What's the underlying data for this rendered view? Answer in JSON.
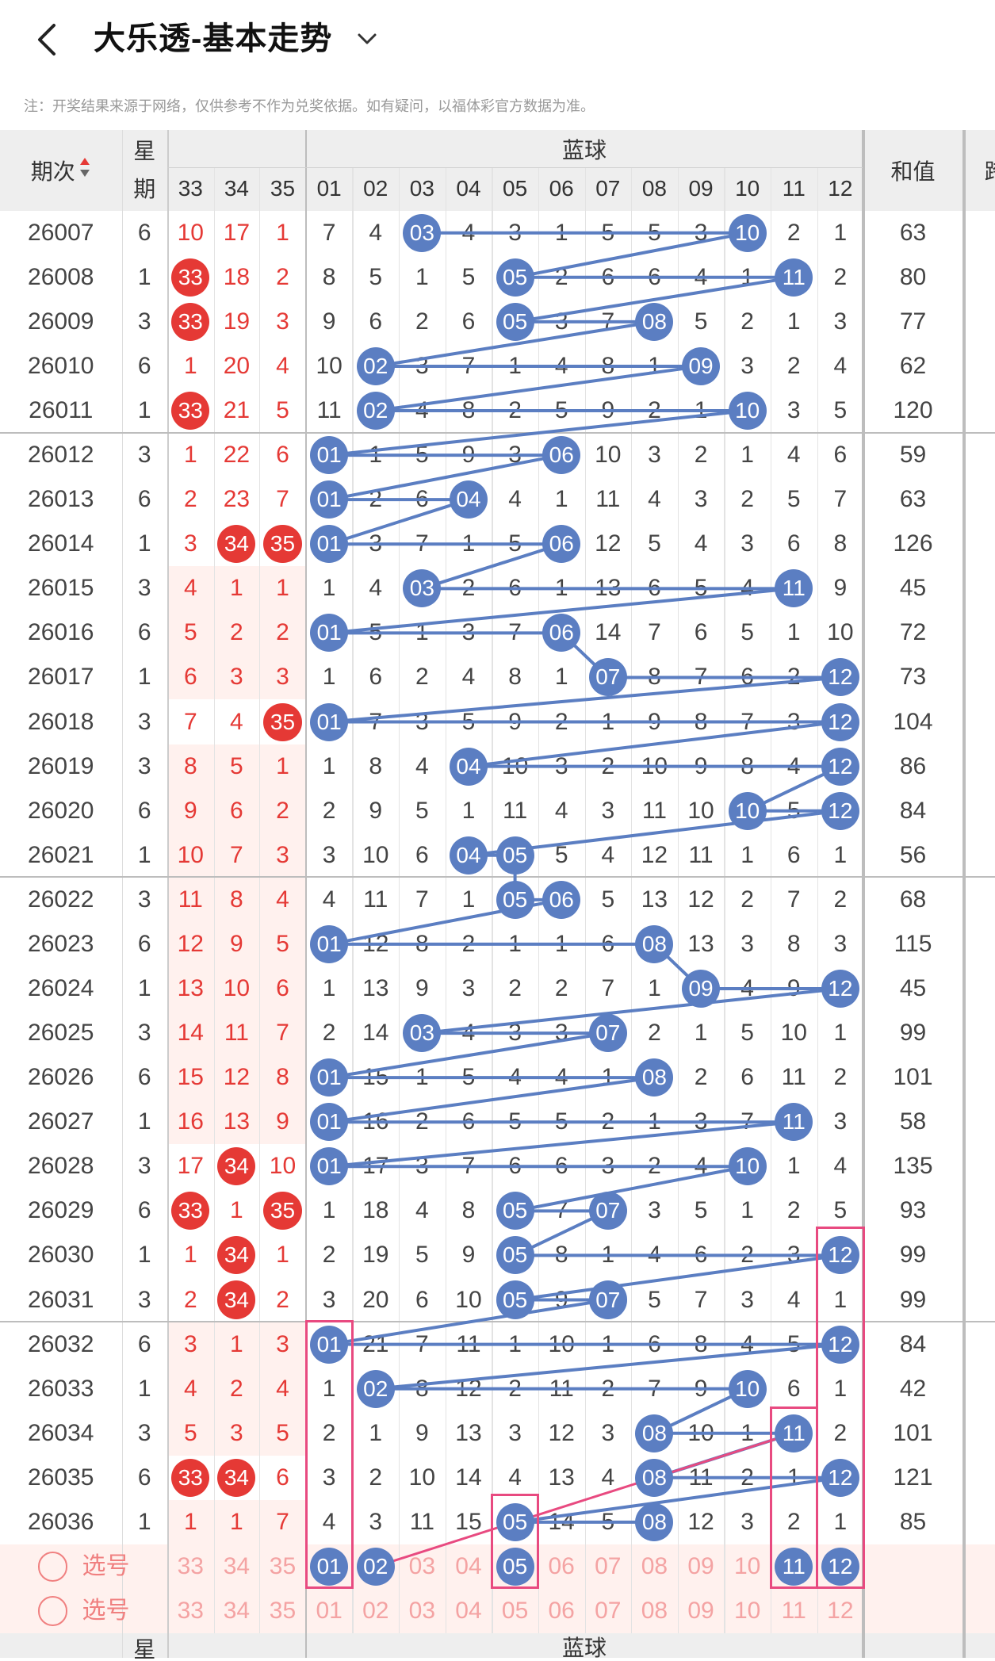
{
  "header": {
    "title": "大乐透-基本走势",
    "back_icon": "chevron-left-icon",
    "dropdown_icon": "chevron-down-icon"
  },
  "note": "注：开奖结果来源于网络，仅供参考不作为兑奖依据。如有疑问，以福体彩官方数据为准。",
  "columns": {
    "period": "期次",
    "weekday_top": "星",
    "weekday_bottom": "期",
    "blue_group": "蓝球",
    "sum": "和值",
    "extra": "跨",
    "red_headers": [
      "33",
      "34",
      "35"
    ],
    "blue_headers": [
      "01",
      "02",
      "03",
      "04",
      "05",
      "06",
      "07",
      "08",
      "09",
      "10",
      "11",
      "12"
    ]
  },
  "colors": {
    "red_ball": "#e53935",
    "blue_ball": "#5b7ec2",
    "highlight_box": "#e84a80",
    "header_bg": "#eeeeee",
    "row_pink": "#fff1ee"
  },
  "rows": [
    {
      "p": "26007",
      "w": "6",
      "r": [
        "10",
        "17",
        "1"
      ],
      "rb": [],
      "b": [
        "7",
        "4",
        "03",
        "4",
        "3",
        "1",
        "5",
        "5",
        "3",
        "10",
        "2",
        "1"
      ],
      "bb": [
        2,
        9
      ],
      "s": "63"
    },
    {
      "p": "26008",
      "w": "1",
      "r": [
        "33",
        "18",
        "2"
      ],
      "rb": [
        0
      ],
      "b": [
        "8",
        "5",
        "1",
        "5",
        "05",
        "2",
        "6",
        "6",
        "4",
        "1",
        "11",
        "2"
      ],
      "bb": [
        4,
        10
      ],
      "s": "80"
    },
    {
      "p": "26009",
      "w": "3",
      "r": [
        "33",
        "19",
        "3"
      ],
      "rb": [
        0
      ],
      "b": [
        "9",
        "6",
        "2",
        "6",
        "05",
        "3",
        "7",
        "08",
        "5",
        "2",
        "1",
        "3"
      ],
      "bb": [
        4,
        7
      ],
      "s": "77"
    },
    {
      "p": "26010",
      "w": "6",
      "r": [
        "1",
        "20",
        "4"
      ],
      "rb": [],
      "b": [
        "10",
        "02",
        "3",
        "7",
        "1",
        "4",
        "8",
        "1",
        "09",
        "3",
        "2",
        "4"
      ],
      "bb": [
        1,
        8
      ],
      "s": "62"
    },
    {
      "p": "26011",
      "w": "1",
      "r": [
        "33",
        "21",
        "5"
      ],
      "rb": [
        0
      ],
      "b": [
        "11",
        "02",
        "4",
        "8",
        "2",
        "5",
        "9",
        "2",
        "1",
        "10",
        "3",
        "5"
      ],
      "bb": [
        1,
        9
      ],
      "s": "120"
    },
    {
      "p": "26012",
      "w": "3",
      "r": [
        "1",
        "22",
        "6"
      ],
      "rb": [],
      "b": [
        "01",
        "1",
        "5",
        "9",
        "3",
        "06",
        "10",
        "3",
        "2",
        "1",
        "4",
        "6"
      ],
      "bb": [
        0,
        5
      ],
      "s": "59"
    },
    {
      "p": "26013",
      "w": "6",
      "r": [
        "2",
        "23",
        "7"
      ],
      "rb": [],
      "b": [
        "01",
        "2",
        "6",
        "04",
        "4",
        "1",
        "11",
        "4",
        "3",
        "2",
        "5",
        "7"
      ],
      "bb": [
        0,
        3
      ],
      "s": "63"
    },
    {
      "p": "26014",
      "w": "1",
      "r": [
        "3",
        "34",
        "35"
      ],
      "rb": [
        1,
        2
      ],
      "b": [
        "01",
        "3",
        "7",
        "1",
        "5",
        "06",
        "12",
        "5",
        "4",
        "3",
        "6",
        "8"
      ],
      "bb": [
        0,
        5
      ],
      "s": "126"
    },
    {
      "p": "26015",
      "w": "3",
      "r": [
        "4",
        "1",
        "1"
      ],
      "rb": [],
      "b": [
        "1",
        "4",
        "03",
        "2",
        "6",
        "1",
        "13",
        "6",
        "5",
        "4",
        "11",
        "9"
      ],
      "bb": [
        2,
        10
      ],
      "s": "45"
    },
    {
      "p": "26016",
      "w": "6",
      "r": [
        "5",
        "2",
        "2"
      ],
      "rb": [],
      "b": [
        "01",
        "5",
        "1",
        "3",
        "7",
        "06",
        "14",
        "7",
        "6",
        "5",
        "1",
        "10"
      ],
      "bb": [
        0,
        5
      ],
      "s": "72"
    },
    {
      "p": "26017",
      "w": "1",
      "r": [
        "6",
        "3",
        "3"
      ],
      "rb": [],
      "b": [
        "1",
        "6",
        "2",
        "4",
        "8",
        "1",
        "07",
        "8",
        "7",
        "6",
        "2",
        "12"
      ],
      "bb": [
        6,
        11
      ],
      "s": "73"
    },
    {
      "p": "26018",
      "w": "3",
      "r": [
        "7",
        "4",
        "35"
      ],
      "rb": [
        2
      ],
      "b": [
        "01",
        "7",
        "3",
        "5",
        "9",
        "2",
        "1",
        "9",
        "8",
        "7",
        "3",
        "12"
      ],
      "bb": [
        0,
        11
      ],
      "s": "104"
    },
    {
      "p": "26019",
      "w": "3",
      "r": [
        "8",
        "5",
        "1"
      ],
      "rb": [],
      "b": [
        "1",
        "8",
        "4",
        "04",
        "10",
        "3",
        "2",
        "10",
        "9",
        "8",
        "4",
        "12"
      ],
      "bb": [
        3,
        11
      ],
      "s": "86"
    },
    {
      "p": "26020",
      "w": "6",
      "r": [
        "9",
        "6",
        "2"
      ],
      "rb": [],
      "b": [
        "2",
        "9",
        "5",
        "1",
        "11",
        "4",
        "3",
        "11",
        "10",
        "10",
        "5",
        "12"
      ],
      "bb": [
        9,
        11
      ],
      "s": "84"
    },
    {
      "p": "26021",
      "w": "1",
      "r": [
        "10",
        "7",
        "3"
      ],
      "rb": [],
      "b": [
        "3",
        "10",
        "6",
        "04",
        "05",
        "5",
        "4",
        "12",
        "11",
        "1",
        "6",
        "1"
      ],
      "bb": [
        3,
        4
      ],
      "s": "56"
    },
    {
      "p": "26022",
      "w": "3",
      "r": [
        "11",
        "8",
        "4"
      ],
      "rb": [],
      "b": [
        "4",
        "11",
        "7",
        "1",
        "05",
        "06",
        "5",
        "13",
        "12",
        "2",
        "7",
        "2"
      ],
      "bb": [
        4,
        5
      ],
      "s": "68"
    },
    {
      "p": "26023",
      "w": "6",
      "r": [
        "12",
        "9",
        "5"
      ],
      "rb": [],
      "b": [
        "01",
        "12",
        "8",
        "2",
        "1",
        "1",
        "6",
        "08",
        "13",
        "3",
        "8",
        "3"
      ],
      "bb": [
        0,
        7
      ],
      "s": "115"
    },
    {
      "p": "26024",
      "w": "1",
      "r": [
        "13",
        "10",
        "6"
      ],
      "rb": [],
      "b": [
        "1",
        "13",
        "9",
        "3",
        "2",
        "2",
        "7",
        "1",
        "09",
        "4",
        "9",
        "12"
      ],
      "bb": [
        8,
        11
      ],
      "s": "45"
    },
    {
      "p": "26025",
      "w": "3",
      "r": [
        "14",
        "11",
        "7"
      ],
      "rb": [],
      "b": [
        "2",
        "14",
        "03",
        "4",
        "3",
        "3",
        "07",
        "2",
        "1",
        "5",
        "10",
        "1"
      ],
      "bb": [
        2,
        6
      ],
      "s": "99"
    },
    {
      "p": "26026",
      "w": "6",
      "r": [
        "15",
        "12",
        "8"
      ],
      "rb": [],
      "b": [
        "01",
        "15",
        "1",
        "5",
        "4",
        "4",
        "1",
        "08",
        "2",
        "6",
        "11",
        "2"
      ],
      "bb": [
        0,
        7
      ],
      "s": "101"
    },
    {
      "p": "26027",
      "w": "1",
      "r": [
        "16",
        "13",
        "9"
      ],
      "rb": [],
      "b": [
        "01",
        "16",
        "2",
        "6",
        "5",
        "5",
        "2",
        "1",
        "3",
        "7",
        "11",
        "3"
      ],
      "bb": [
        0,
        10
      ],
      "s": "58"
    },
    {
      "p": "26028",
      "w": "3",
      "r": [
        "17",
        "34",
        "10"
      ],
      "rb": [
        1
      ],
      "b": [
        "01",
        "17",
        "3",
        "7",
        "6",
        "6",
        "3",
        "2",
        "4",
        "10",
        "1",
        "4"
      ],
      "bb": [
        0,
        9
      ],
      "s": "135"
    },
    {
      "p": "26029",
      "w": "6",
      "r": [
        "33",
        "1",
        "35"
      ],
      "rb": [
        0,
        2
      ],
      "b": [
        "1",
        "18",
        "4",
        "8",
        "05",
        "7",
        "07",
        "3",
        "5",
        "1",
        "2",
        "5"
      ],
      "bb": [
        4,
        6
      ],
      "s": "93"
    },
    {
      "p": "26030",
      "w": "1",
      "r": [
        "1",
        "34",
        "1"
      ],
      "rb": [
        1
      ],
      "b": [
        "2",
        "19",
        "5",
        "9",
        "05",
        "8",
        "1",
        "4",
        "6",
        "2",
        "3",
        "12"
      ],
      "bb": [
        4,
        11
      ],
      "s": "99"
    },
    {
      "p": "26031",
      "w": "3",
      "r": [
        "2",
        "34",
        "2"
      ],
      "rb": [
        1
      ],
      "b": [
        "3",
        "20",
        "6",
        "10",
        "05",
        "9",
        "07",
        "5",
        "7",
        "3",
        "4",
        "1"
      ],
      "bb": [
        4,
        6
      ],
      "s": "99"
    },
    {
      "p": "26032",
      "w": "6",
      "r": [
        "3",
        "1",
        "3"
      ],
      "rb": [],
      "b": [
        "01",
        "21",
        "7",
        "11",
        "1",
        "10",
        "1",
        "6",
        "8",
        "4",
        "5",
        "12"
      ],
      "bb": [
        0,
        11
      ],
      "s": "84"
    },
    {
      "p": "26033",
      "w": "1",
      "r": [
        "4",
        "2",
        "4"
      ],
      "rb": [],
      "b": [
        "1",
        "02",
        "8",
        "12",
        "2",
        "11",
        "2",
        "7",
        "9",
        "10",
        "6",
        "1"
      ],
      "bb": [
        1,
        9
      ],
      "s": "42"
    },
    {
      "p": "26034",
      "w": "3",
      "r": [
        "5",
        "3",
        "5"
      ],
      "rb": [],
      "b": [
        "2",
        "1",
        "9",
        "13",
        "3",
        "12",
        "3",
        "08",
        "10",
        "1",
        "11",
        "2"
      ],
      "bb": [
        7,
        10
      ],
      "s": "101"
    },
    {
      "p": "26035",
      "w": "6",
      "r": [
        "33",
        "34",
        "6"
      ],
      "rb": [
        0,
        1
      ],
      "b": [
        "3",
        "2",
        "10",
        "14",
        "4",
        "13",
        "4",
        "08",
        "11",
        "2",
        "1",
        "12"
      ],
      "bb": [
        7,
        11
      ],
      "s": "121"
    },
    {
      "p": "26036",
      "w": "1",
      "r": [
        "1",
        "1",
        "7"
      ],
      "rb": [],
      "b": [
        "4",
        "3",
        "11",
        "15",
        "05",
        "14",
        "5",
        "08",
        "12",
        "3",
        "2",
        "1"
      ],
      "bb": [
        4,
        7
      ],
      "s": "85"
    }
  ],
  "select_rows": [
    {
      "label": "选号",
      "r": [
        "33",
        "34",
        "35"
      ],
      "b": [
        "01",
        "02",
        "03",
        "04",
        "05",
        "06",
        "07",
        "08",
        "09",
        "10",
        "11",
        "12"
      ],
      "bb": [
        0,
        1,
        4,
        10,
        11
      ]
    },
    {
      "label": "选号",
      "r": [
        "33",
        "34",
        "35"
      ],
      "b": [
        "01",
        "02",
        "03",
        "04",
        "05",
        "06",
        "07",
        "08",
        "09",
        "10",
        "11",
        "12"
      ],
      "bb": []
    }
  ]
}
